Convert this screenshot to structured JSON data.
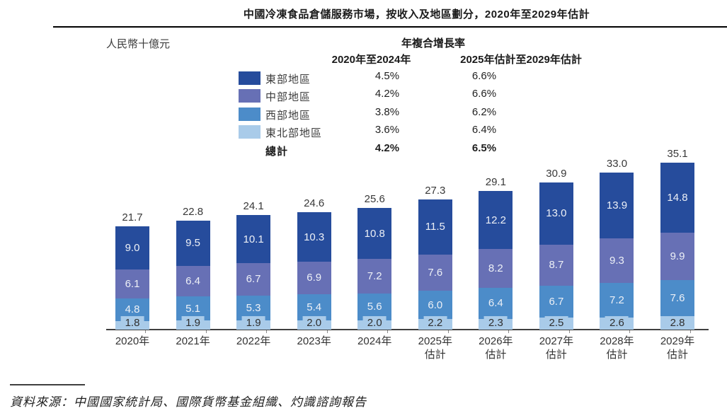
{
  "page": {
    "title": "中國冷凍食品倉儲服務市場，按收入及地區劃分，2020年至2029年估計",
    "unit_label": "人民幣十億元",
    "source": "資料來源：中國國家統計局、國際貨幣基金組織、灼識諮詢報告"
  },
  "cagr_table": {
    "heading": "年複合增長率",
    "col_headers": [
      "2020年至2024年",
      "2025年估計至2029年估計"
    ],
    "rows": [
      {
        "region": "東部地區",
        "swatch_color": "#264C9C",
        "cagr_2020_2024": "4.5%",
        "cagr_2025_2029": "6.6%"
      },
      {
        "region": "中部地區",
        "swatch_color": "#6770B5",
        "cagr_2020_2024": "4.2%",
        "cagr_2025_2029": "6.6%"
      },
      {
        "region": "西部地區",
        "swatch_color": "#4C8CC9",
        "cagr_2020_2024": "3.8%",
        "cagr_2025_2029": "6.2%"
      },
      {
        "region": "東北部地區",
        "swatch_color": "#A9CBE9",
        "cagr_2020_2024": "3.6%",
        "cagr_2025_2029": "6.4%"
      }
    ],
    "total_row": {
      "label": "總計",
      "cagr_2020_2024": "4.2%",
      "cagr_2025_2029": "6.5%"
    }
  },
  "chart_data": {
    "type": "bar",
    "stacked": true,
    "title": "中國冷凍食品倉儲服務市場，按收入及地區劃分，2020年至2029年估計",
    "ylabel": "人民幣十億元",
    "legend_position": "top-left",
    "grid": false,
    "categories": [
      [
        "2020年"
      ],
      [
        "2021年"
      ],
      [
        "2022年"
      ],
      [
        "2023年"
      ],
      [
        "2024年"
      ],
      [
        "2025年",
        "估計"
      ],
      [
        "2026年",
        "估計"
      ],
      [
        "2027年",
        "估計"
      ],
      [
        "2028年",
        "估計"
      ],
      [
        "2029年",
        "估計"
      ]
    ],
    "series": [
      {
        "name": "東部地區",
        "color": "#264C9C",
        "values": [
          9.0,
          9.5,
          10.1,
          10.3,
          10.8,
          11.5,
          12.2,
          13.0,
          13.9,
          14.8
        ]
      },
      {
        "name": "中部地區",
        "color": "#6770B5",
        "values": [
          6.1,
          6.4,
          6.7,
          6.9,
          7.2,
          7.6,
          8.2,
          8.7,
          9.3,
          9.9
        ]
      },
      {
        "name": "西部地區",
        "color": "#4C8CC9",
        "values": [
          4.8,
          5.1,
          5.3,
          5.4,
          5.6,
          6.0,
          6.4,
          6.7,
          7.2,
          7.6
        ]
      },
      {
        "name": "東北部地區",
        "color": "#A9CBE9",
        "values": [
          1.8,
          1.9,
          1.9,
          2.0,
          2.0,
          2.2,
          2.3,
          2.5,
          2.6,
          2.8
        ]
      }
    ],
    "totals": [
      21.7,
      22.8,
      24.1,
      24.6,
      25.6,
      27.3,
      29.1,
      30.9,
      33.0,
      35.1
    ],
    "ylim": [
      0,
      38
    ]
  }
}
